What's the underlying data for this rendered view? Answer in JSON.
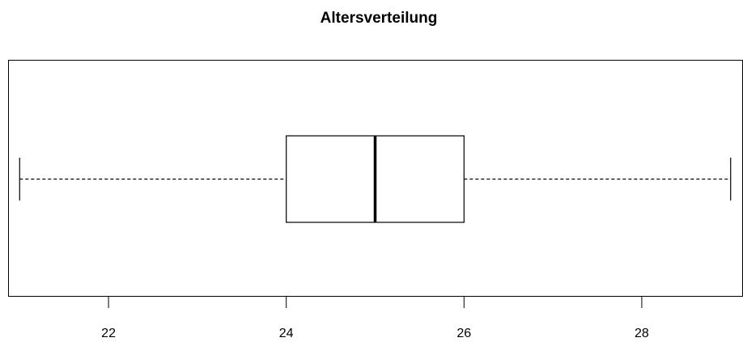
{
  "chart_data": {
    "type": "boxplot",
    "title": "Altersverteilung",
    "xlabel": "",
    "ylabel": "",
    "orientation": "horizontal",
    "xlim": [
      20.87,
      29.13
    ],
    "ticks": [
      22,
      24,
      26,
      28
    ],
    "tick_labels": [
      "22",
      "24",
      "26",
      "28"
    ],
    "series": [
      {
        "min": 21,
        "q1": 24,
        "median": 25,
        "q3": 26,
        "max": 29
      }
    ]
  }
}
